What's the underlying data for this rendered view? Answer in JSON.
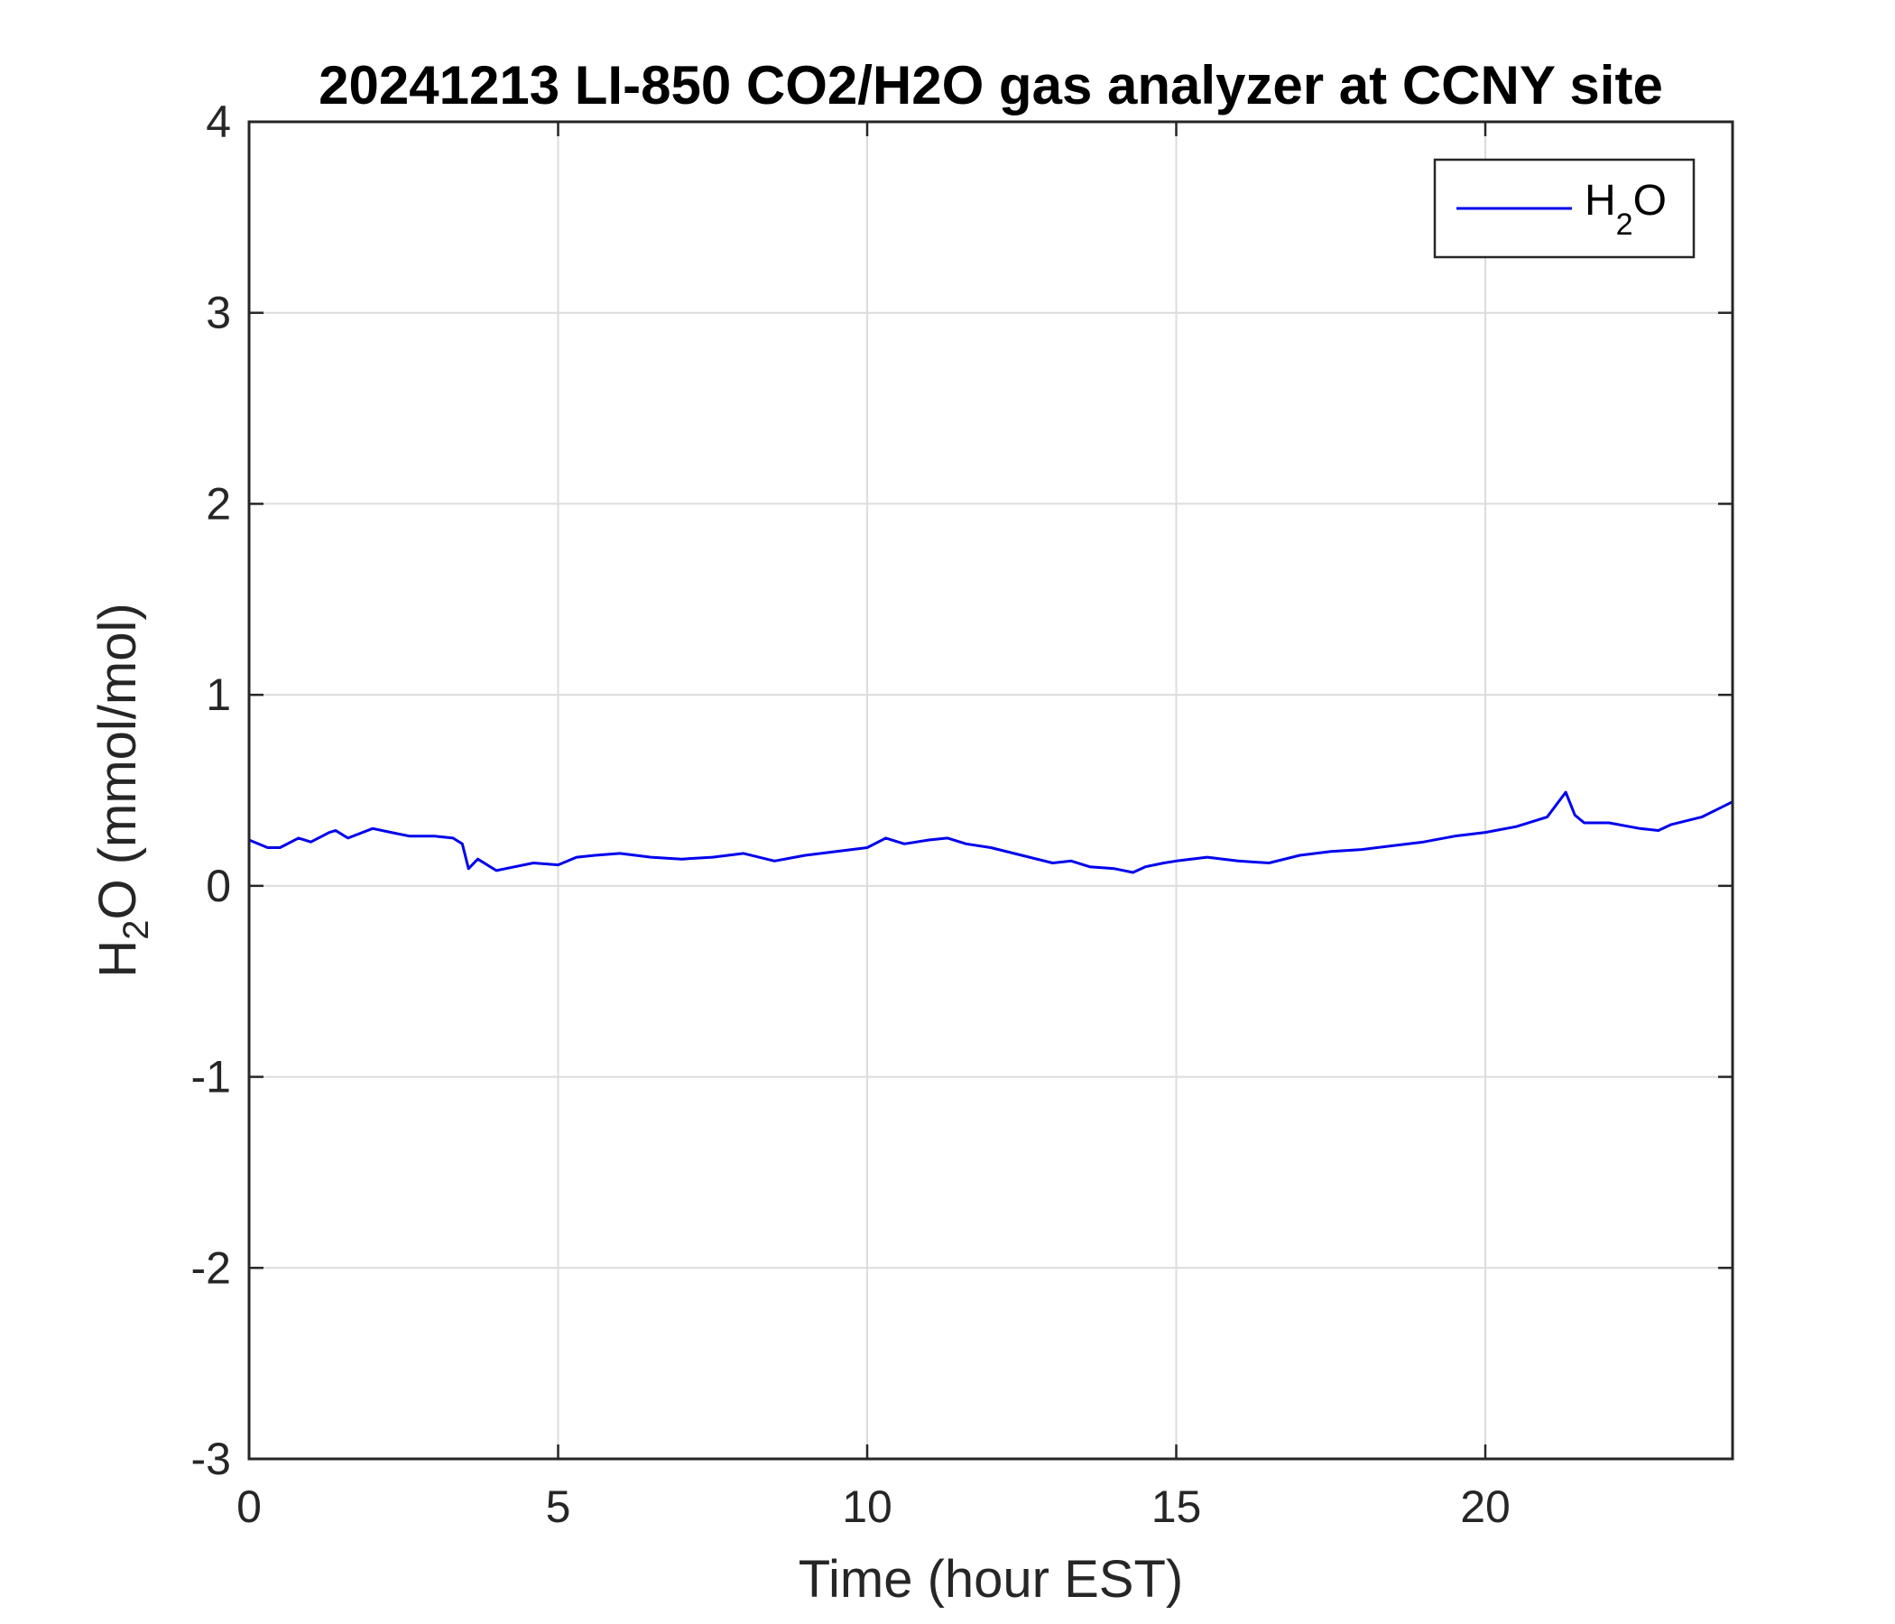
{
  "chart_data": {
    "type": "line",
    "title": "20241213 LI-850 CO2/H2O gas analyzer at CCNY site",
    "xlabel": "Time (hour EST)",
    "ylabel_main": "H",
    "ylabel_sub": "2",
    "ylabel_rest": "O (mmol/mol)",
    "xlim": [
      0,
      24
    ],
    "ylim": [
      -3,
      4
    ],
    "xticks": [
      0,
      5,
      10,
      15,
      20
    ],
    "yticks": [
      -3,
      -2,
      -1,
      0,
      1,
      2,
      3,
      4
    ],
    "grid": true,
    "legend_position": "top-right",
    "series": [
      {
        "name_main": "H",
        "name_sub": "2",
        "name_rest": "O",
        "color": "#0000ee",
        "x": [
          0,
          0.3,
          0.5,
          0.8,
          1.0,
          1.3,
          1.4,
          1.6,
          2.0,
          2.3,
          2.6,
          3.0,
          3.3,
          3.45,
          3.55,
          3.7,
          4.0,
          4.3,
          4.6,
          5.0,
          5.3,
          5.6,
          6.0,
          6.5,
          7.0,
          7.5,
          8.0,
          8.5,
          9.0,
          9.5,
          10.0,
          10.3,
          10.6,
          11.0,
          11.3,
          11.6,
          12.0,
          12.5,
          13.0,
          13.3,
          13.6,
          14.0,
          14.3,
          14.5,
          14.8,
          15.0,
          15.5,
          16.0,
          16.5,
          17.0,
          17.5,
          18.0,
          18.5,
          19.0,
          19.5,
          20.0,
          20.5,
          21.0,
          21.3,
          21.45,
          21.6,
          22.0,
          22.5,
          22.8,
          23.0,
          23.5,
          24.0
        ],
        "values": [
          0.24,
          0.2,
          0.2,
          0.25,
          0.23,
          0.28,
          0.29,
          0.25,
          0.3,
          0.28,
          0.26,
          0.26,
          0.25,
          0.22,
          0.09,
          0.14,
          0.08,
          0.1,
          0.12,
          0.11,
          0.15,
          0.16,
          0.17,
          0.15,
          0.14,
          0.15,
          0.17,
          0.13,
          0.16,
          0.18,
          0.2,
          0.25,
          0.22,
          0.24,
          0.25,
          0.22,
          0.2,
          0.16,
          0.12,
          0.13,
          0.1,
          0.09,
          0.07,
          0.1,
          0.12,
          0.13,
          0.15,
          0.13,
          0.12,
          0.16,
          0.18,
          0.19,
          0.21,
          0.23,
          0.26,
          0.28,
          0.31,
          0.36,
          0.49,
          0.37,
          0.33,
          0.33,
          0.3,
          0.29,
          0.32,
          0.36,
          0.44
        ]
      }
    ]
  }
}
